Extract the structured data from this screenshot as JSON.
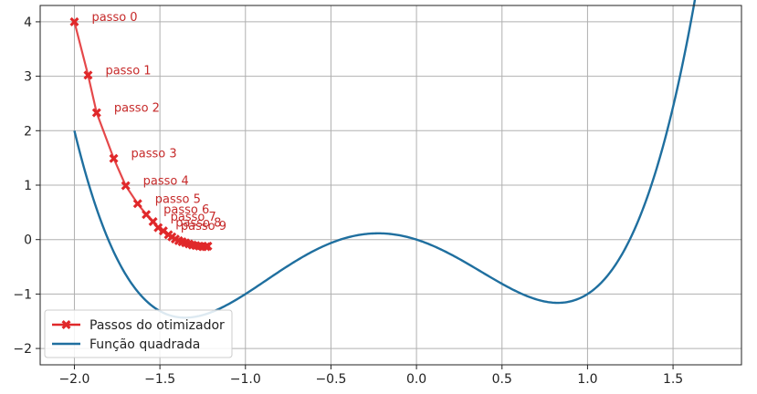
{
  "chart_data": {
    "type": "line",
    "xlim": [
      -2.2,
      1.9
    ],
    "ylim": [
      -2.3,
      4.3
    ],
    "x_ticks": [
      -2.0,
      -1.5,
      -1.0,
      -0.5,
      0.0,
      0.5,
      1.0,
      1.5
    ],
    "x_tick_labels": [
      "−2.0",
      "−1.5",
      "−1.0",
      "−0.5",
      "0.0",
      "0.5",
      "1.0",
      "1.5"
    ],
    "y_ticks": [
      4,
      3,
      2,
      1,
      0,
      -1,
      -2
    ],
    "y_tick_labels": [
      "4",
      "3",
      "2",
      "1",
      "0",
      "−1",
      "−2"
    ],
    "grid": true,
    "legend_position": "lower-left",
    "colors": {
      "function": "#1f6f9f",
      "optimizer": "#e0282a",
      "step_label": "#c62a2a",
      "grid": "#b0b0b0"
    },
    "series": [
      {
        "name": "Função quadrada",
        "kind": "curve",
        "x_range": [
          -2.0,
          1.69
        ],
        "formula": "x^4 + x^3 - 2x^2 - x"
      },
      {
        "name": "Passos do otimizador",
        "kind": "points",
        "x": [
          -2.0,
          -1.92,
          -1.87,
          -1.77,
          -1.7,
          -1.63,
          -1.58,
          -1.54,
          -1.51,
          -1.48,
          -1.45,
          -1.43,
          -1.41,
          -1.39,
          -1.37,
          -1.35,
          -1.33,
          -1.31,
          -1.29,
          -1.27,
          -1.25,
          -1.23,
          -1.22
        ],
        "y": [
          4.0,
          3.02,
          2.33,
          1.49,
          0.99,
          0.66,
          0.46,
          0.33,
          0.22,
          0.16,
          0.09,
          0.05,
          0.01,
          -0.02,
          -0.04,
          -0.06,
          -0.08,
          -0.1,
          -0.11,
          -0.12,
          -0.13,
          -0.13,
          -0.12
        ]
      }
    ],
    "annotations": [
      {
        "text": "passo 0",
        "x": -2.0,
        "y": 4.0
      },
      {
        "text": "passo 1",
        "x": -1.92,
        "y": 3.02
      },
      {
        "text": "passo 2",
        "x": -1.87,
        "y": 2.33
      },
      {
        "text": "passo 3",
        "x": -1.77,
        "y": 1.49
      },
      {
        "text": "passo 4",
        "x": -1.7,
        "y": 0.99
      },
      {
        "text": "passo 5",
        "x": -1.63,
        "y": 0.66
      },
      {
        "text": "passo 6",
        "x": -1.58,
        "y": 0.46
      },
      {
        "text": "passo 7",
        "x": -1.54,
        "y": 0.33
      },
      {
        "text": "passo 8",
        "x": -1.51,
        "y": 0.22
      },
      {
        "text": "passo 9",
        "x": -1.48,
        "y": 0.16
      }
    ],
    "legend": [
      "Passos do otimizador",
      "Função quadrada"
    ]
  }
}
